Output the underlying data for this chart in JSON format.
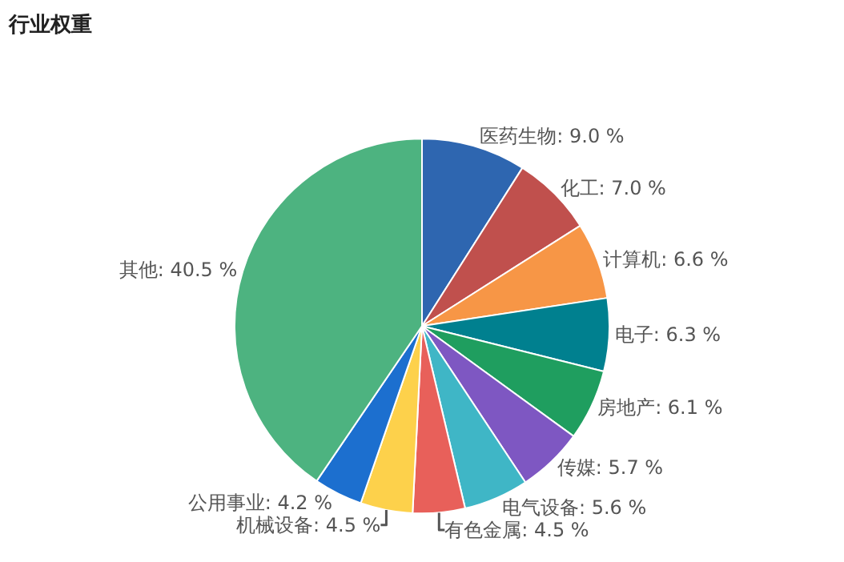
{
  "chart_data": {
    "type": "pie",
    "title": "行业权重",
    "categories": [
      "医药生物",
      "化工",
      "计算机",
      "电子",
      "房地产",
      "传媒",
      "电气设备",
      "有色金属",
      "机械设备",
      "公用事业",
      "其他"
    ],
    "values": [
      9.0,
      7.0,
      6.6,
      6.3,
      6.1,
      5.7,
      5.6,
      4.5,
      4.5,
      4.2,
      40.5
    ],
    "value_labels": [
      "9.0 %",
      "7.0 %",
      "6.6 %",
      "6.3 %",
      "6.1 %",
      "5.7 %",
      "5.6 %",
      "4.5 %",
      "4.5 %",
      "4.2 %",
      "40.5 %"
    ],
    "colors": [
      "#2e66b0",
      "#c0504d",
      "#f79646",
      "#00808f",
      "#1f9e5f",
      "#7e57c2",
      "#3fb6c6",
      "#e8605a",
      "#fdd14b",
      "#1c6fcf",
      "#4db380"
    ],
    "legend": false
  }
}
